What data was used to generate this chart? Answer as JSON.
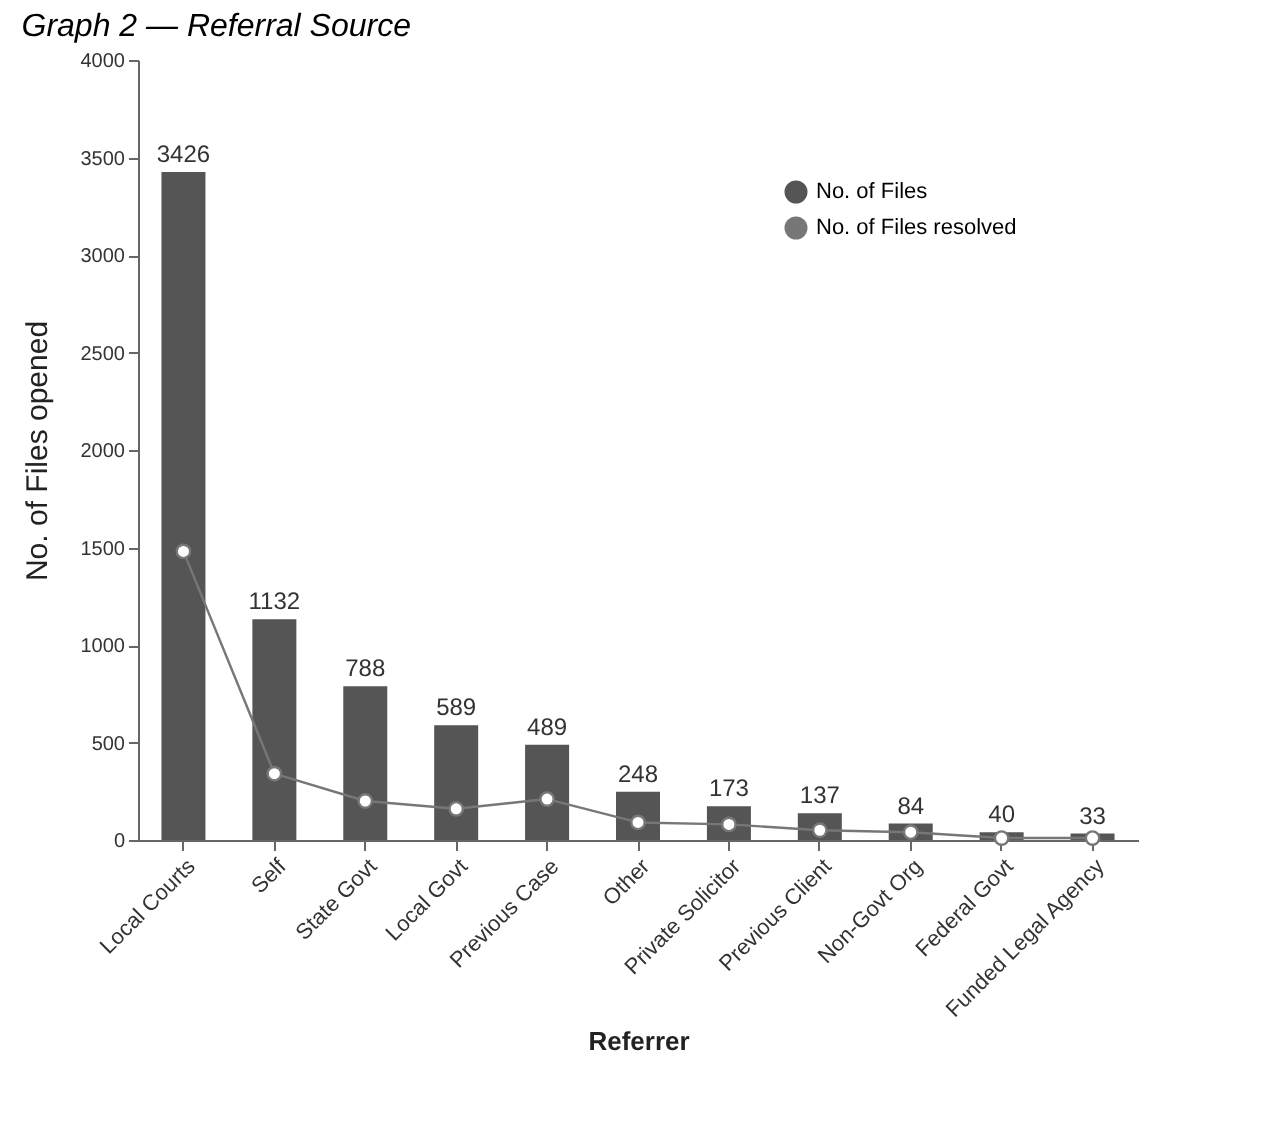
{
  "chart_data": {
    "type": "bar",
    "title": "Graph 2 — Referral Source",
    "xlabel": "Referrer",
    "ylabel": "No. of Files opened",
    "categories": [
      "Local Courts",
      "Self",
      "State Govt",
      "Local Govt",
      "Previous Case",
      "Other",
      "Private Solicitor",
      "Previous Client",
      "Non-Govt Org",
      "Federal Govt",
      "Funded Legal Agency"
    ],
    "series": [
      {
        "name": "No. of Files",
        "color": "#555555",
        "values": [
          3426,
          1132,
          788,
          589,
          489,
          248,
          173,
          137,
          84,
          40,
          33
        ],
        "value_labels": [
          "3426",
          "1132",
          "788",
          "589",
          "489",
          "248",
          "173",
          "137",
          "84",
          "40",
          "33"
        ]
      },
      {
        "name": "No. of Files resolved",
        "type": "line",
        "color": "#777777",
        "marker": "circle",
        "values": [
          1480,
          340,
          200,
          160,
          210,
          90,
          80,
          50,
          40,
          10,
          10
        ]
      }
    ],
    "ylim": [
      0,
      4000
    ],
    "yticks": [
      0,
      500,
      1000,
      1500,
      2000,
      2500,
      3000,
      3500,
      4000
    ],
    "grid": false,
    "legend": "top right"
  }
}
